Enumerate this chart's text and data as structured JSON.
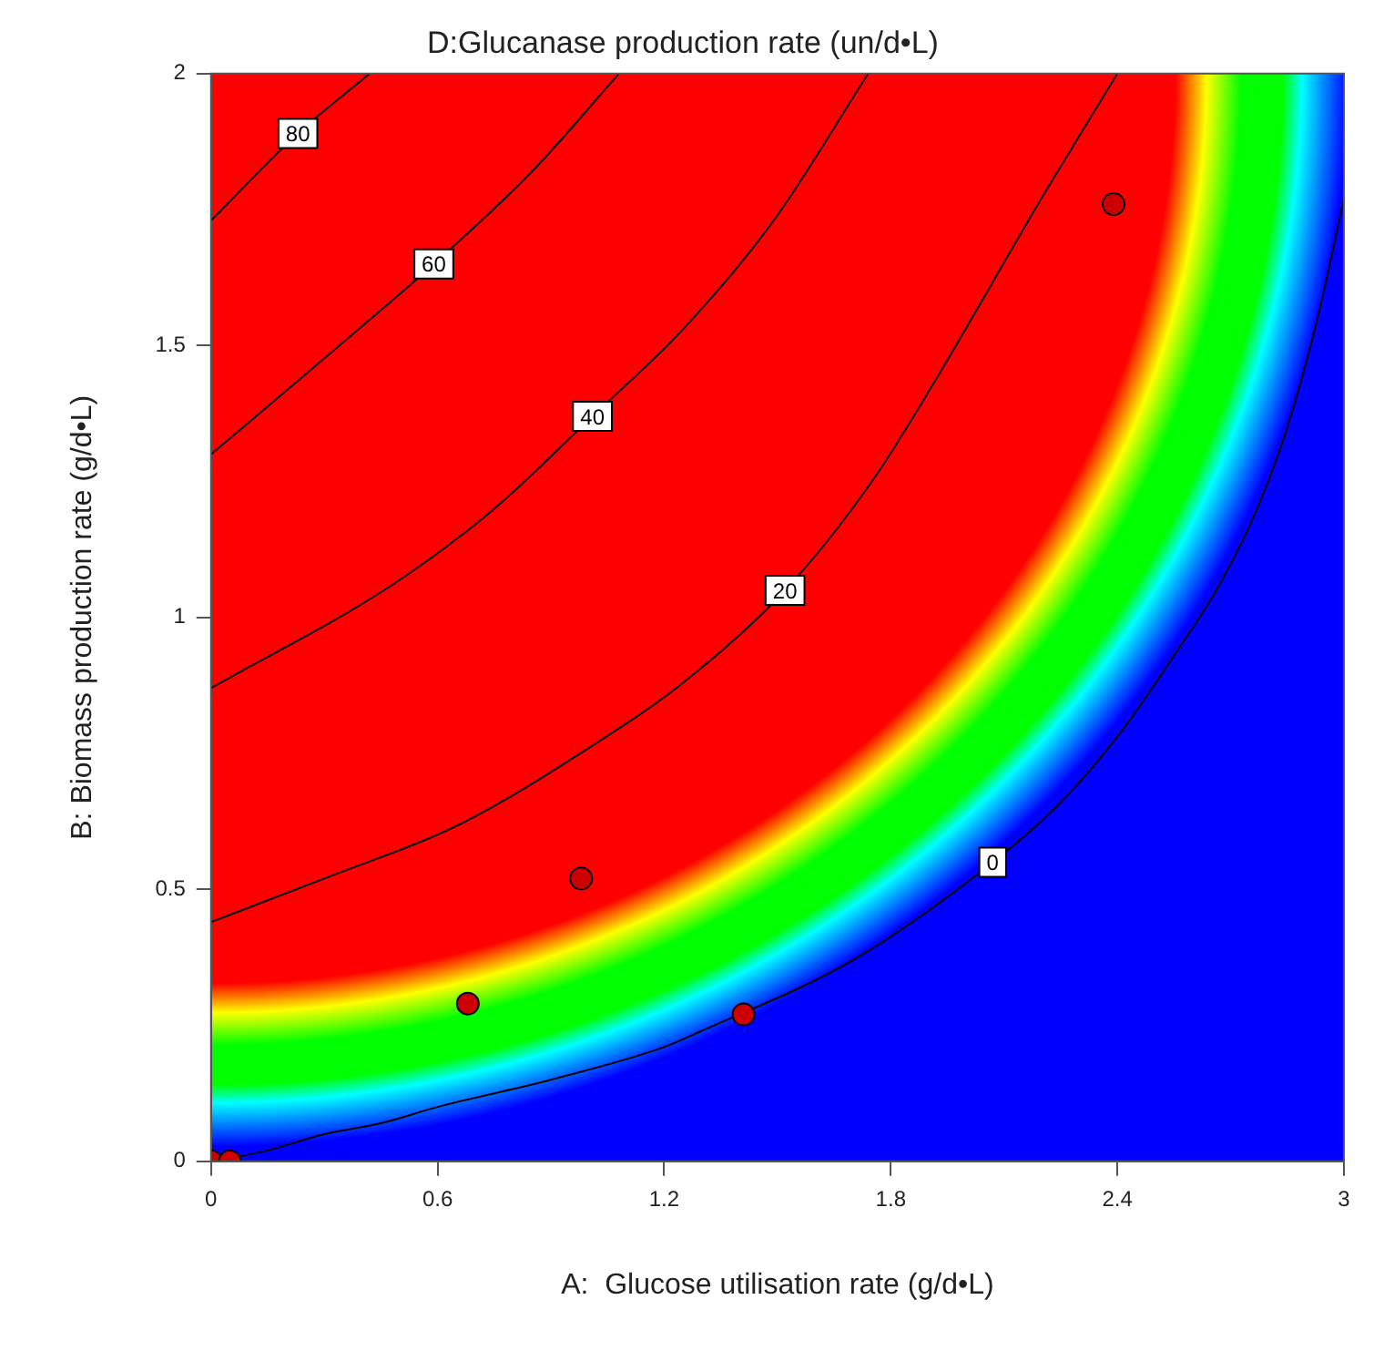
{
  "chart_data": {
    "type": "line",
    "title": "D:Glucanase production rate (un/d•L)",
    "xlabel": "A:  Glucose utilisation rate (g/d•L)",
    "ylabel": "B: Biomass production rate (g/d•L)",
    "xlim": [
      0,
      3
    ],
    "xticks": [
      0,
      0.6,
      1.2,
      1.8,
      2.4,
      3
    ],
    "ylim": [
      0,
      2
    ],
    "yticks": [
      0,
      0.5,
      1,
      1.5,
      2
    ],
    "grid": false,
    "legend": false,
    "series": [
      {
        "name": "0",
        "type": "line",
        "color": "#000000",
        "marker": "none",
        "x": [
          0,
          0.15,
          0.3,
          0.45,
          0.6,
          0.9,
          1.2,
          1.3,
          1.7,
          2.07,
          2.25,
          2.41,
          2.55,
          2.67,
          2.77,
          2.85,
          2.93,
          3
        ],
        "values": [
          0,
          0.02,
          0.05,
          0.07,
          0.1,
          0.15,
          0.21,
          0.24,
          0.37,
          0.55,
          0.66,
          0.79,
          0.93,
          1.06,
          1.2,
          1.35,
          1.55,
          1.77
        ]
      },
      {
        "name": "20",
        "type": "line",
        "color": "#000000",
        "marker": "none",
        "x": [
          0,
          0.3,
          0.66,
          1,
          1.25,
          1.52,
          1.75,
          1.93,
          2.19,
          2.4
        ],
        "values": [
          0.44,
          0.52,
          0.62,
          0.76,
          0.88,
          1.05,
          1.25,
          1.45,
          1.76,
          2
        ]
      },
      {
        "name": "40",
        "type": "line",
        "color": "#000000",
        "marker": "none",
        "x": [
          0,
          0.48,
          0.75,
          1.01,
          1.25,
          1.49,
          1.74
        ],
        "values": [
          0.87,
          1.06,
          1.2,
          1.37,
          1.53,
          1.73,
          2
        ]
      },
      {
        "name": "60",
        "type": "line",
        "color": "#000000",
        "marker": "none",
        "x": [
          0,
          0.34,
          0.59,
          0.85,
          1.08
        ],
        "values": [
          1.3,
          1.5,
          1.65,
          1.82,
          2
        ]
      },
      {
        "name": "80",
        "type": "line",
        "color": "#000000",
        "marker": "none",
        "x": [
          0,
          0.23,
          0.42
        ],
        "values": [
          1.73,
          1.89,
          2
        ]
      },
      {
        "type": "scatter",
        "color": "#cc0000",
        "marker": "circle",
        "x": [
          0,
          0.05,
          0.68,
          0.98,
          1.41,
          2.39
        ],
        "values": [
          0,
          0,
          0.29,
          0.52,
          0.27,
          1.76
        ]
      }
    ]
  }
}
